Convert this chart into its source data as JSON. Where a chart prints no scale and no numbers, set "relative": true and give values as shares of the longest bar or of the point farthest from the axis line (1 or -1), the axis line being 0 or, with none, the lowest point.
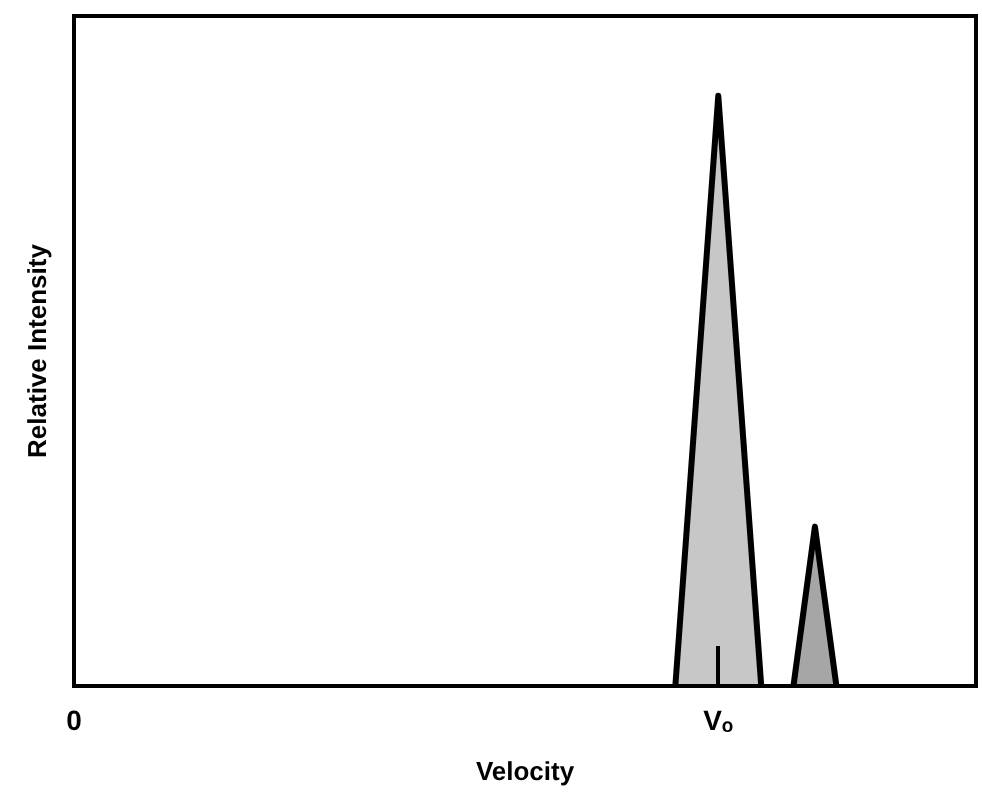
{
  "chart_data": {
    "type": "area",
    "xlabel": "Velocity",
    "ylabel": "Relative Intensity",
    "relative": true,
    "categories": [
      "0",
      null,
      null,
      null,
      null,
      null,
      null,
      null,
      null,
      null,
      null,
      null,
      null,
      null,
      null,
      null,
      null,
      null,
      null,
      null,
      null,
      null,
      null,
      null,
      null,
      null,
      null,
      null,
      null,
      null,
      null,
      null,
      null,
      null,
      null,
      null,
      null,
      null,
      null,
      null,
      null,
      null,
      null,
      null,
      null,
      null,
      null,
      null,
      null,
      null,
      null,
      null,
      null,
      null,
      null,
      null,
      null,
      null,
      null,
      null,
      "Vₒ",
      null,
      null,
      null,
      null,
      null,
      null,
      null,
      null,
      null,
      null,
      null,
      null,
      null,
      null,
      null,
      null,
      null,
      null,
      null,
      null,
      null,
      null,
      null,
      null
    ],
    "series": [
      {
        "color": "#000000",
        "values": [
          null,
          null,
          null,
          null,
          null,
          null,
          null,
          null,
          null,
          null,
          null,
          null,
          null,
          null,
          null,
          null,
          null,
          null,
          null,
          null,
          null,
          null,
          null,
          null,
          null,
          null,
          null,
          null,
          null,
          null,
          null,
          null,
          null,
          null,
          null,
          null,
          null,
          null,
          null,
          null,
          null,
          null,
          null,
          null,
          null,
          null,
          null,
          null,
          null,
          null,
          null,
          null,
          null,
          null,
          null,
          null,
          0,
          null,
          null,
          null,
          1,
          null,
          null,
          null,
          0,
          null,
          null,
          null,
          null,
          null,
          null,
          null,
          null,
          null,
          null,
          null,
          null,
          null,
          null,
          null,
          null,
          null,
          null,
          null,
          null
        ]
      },
      {
        "color": "#000000",
        "values": [
          null,
          null,
          null,
          null,
          null,
          null,
          null,
          null,
          null,
          null,
          null,
          null,
          null,
          null,
          null,
          null,
          null,
          null,
          null,
          null,
          null,
          null,
          null,
          null,
          null,
          null,
          null,
          null,
          null,
          null,
          null,
          null,
          null,
          null,
          null,
          null,
          null,
          null,
          null,
          null,
          null,
          null,
          null,
          null,
          null,
          null,
          null,
          null,
          null,
          null,
          null,
          null,
          null,
          null,
          null,
          null,
          null,
          null,
          null,
          null,
          null,
          null,
          null,
          null,
          null,
          null,
          null,
          0,
          null,
          0.27,
          null,
          0,
          null,
          null,
          null,
          null,
          null,
          null,
          null,
          null,
          null,
          null,
          null,
          null,
          null
        ]
      }
    ]
  }
}
